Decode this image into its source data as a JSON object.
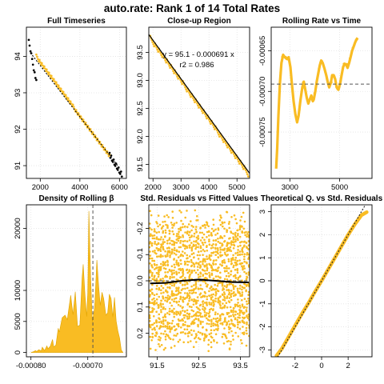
{
  "title": "auto.rate: Rank 1 of 14 Total Rates",
  "colors": {
    "series": "#f9bc23",
    "point_dark": "#000000",
    "fit": "#000000",
    "reference": "#555555",
    "grid": "#e3e3e3",
    "background": "#ffffff"
  },
  "chart_data": [
    {
      "id": "full-timeseries",
      "type": "scatter",
      "title": "Full Timeseries",
      "xlabel": "",
      "ylabel": "",
      "xlim": [
        1300,
        6350
      ],
      "ylim": [
        90.65,
        94.8
      ],
      "x_ticks": [
        2000,
        4000,
        6000
      ],
      "x_tick_labels": [
        "2000",
        "4000",
        "6000"
      ],
      "y_ticks": [
        91,
        92,
        93,
        94
      ],
      "y_tick_labels": [
        "91",
        "92",
        "93",
        "94"
      ],
      "y_tick_rotation": -90,
      "grid": true,
      "series": [
        {
          "style": "points-black",
          "x": [
            1420,
            1800
          ],
          "y": [
            94.4,
            93.3
          ],
          "note_dark": true
        },
        {
          "style": "points-yellow",
          "x": [
            1800,
            5500
          ],
          "y": [
            94.0,
            91.25
          ]
        },
        {
          "style": "points-black",
          "x": [
            5500,
            6120
          ],
          "y": [
            91.3,
            90.75
          ],
          "note_dark": true
        }
      ],
      "fit_line": {
        "x": [
          1500,
          6050
        ],
        "y": [
          94.1,
          90.9
        ],
        "style": "dotted"
      }
    },
    {
      "id": "close-up-region",
      "type": "scatter",
      "title": "Close-up Region",
      "xlim": [
        1850,
        5450
      ],
      "ylim": [
        91.25,
        93.95
      ],
      "x_ticks": [
        2000,
        3000,
        4000,
        5000
      ],
      "x_tick_labels": [
        "2000",
        "3000",
        "4000",
        "5000"
      ],
      "y_ticks": [
        91.5,
        92.0,
        92.5,
        93.0,
        93.5
      ],
      "y_tick_labels": [
        "91.5",
        "92.0",
        "92.5",
        "93.0",
        "93.5"
      ],
      "y_tick_rotation": -90,
      "grid": true,
      "series": [
        {
          "style": "points-yellow",
          "x": [
            1900,
            5400
          ],
          "y": [
            93.75,
            91.33
          ]
        }
      ],
      "fit_line": {
        "x": [
          1850,
          5450
        ],
        "y": [
          93.82,
          91.34
        ],
        "style": "solid"
      },
      "annotations": [
        "y = 95.1 - 0.000691  x",
        "r2 = 0.986"
      ]
    },
    {
      "id": "rolling-rate-vs-time",
      "type": "line",
      "title": "Rolling Rate vs Time",
      "xlim": [
        2250,
        6300
      ],
      "ylim": [
        -0.000807,
        -0.000621
      ],
      "x_ticks": [
        3000,
        5000
      ],
      "x_tick_labels": [
        "3000",
        "5000"
      ],
      "y_ticks": [
        -0.00065,
        -0.0007,
        -0.00075
      ],
      "y_tick_labels": [
        "-0.00065",
        "-0.00070",
        "-0.00075"
      ],
      "y_tick_rotation": -90,
      "grid": true,
      "series": [
        {
          "x": [
            2450,
            2490,
            2540,
            2600,
            2660,
            2730,
            2800,
            2870,
            2950,
            3020,
            3080,
            3150,
            3220,
            3290,
            3350,
            3420,
            3500,
            3560,
            3620,
            3680,
            3740,
            3800,
            3860,
            3920,
            3960,
            4020,
            4080,
            4140,
            4200,
            4260,
            4320,
            4390,
            4460,
            4520,
            4580,
            4640,
            4700,
            4760,
            4820,
            4880,
            4950,
            5020,
            5080,
            5140,
            5200,
            5260,
            5320,
            5380,
            5440,
            5500,
            5560,
            5620,
            5680,
            5720
          ],
          "y": [
            -0.000795,
            -0.00077,
            -0.00073,
            -0.00069,
            -0.000665,
            -0.000655,
            -0.000658,
            -0.00066,
            -0.000658,
            -0.00067,
            -0.00069,
            -0.000712,
            -0.000728,
            -0.000738,
            -0.00073,
            -0.000712,
            -0.000695,
            -0.000688,
            -0.000698,
            -0.000708,
            -0.000715,
            -0.00071,
            -0.000705,
            -0.000712,
            -0.00071,
            -0.0007,
            -0.000688,
            -0.000678,
            -0.000668,
            -0.000662,
            -0.000665,
            -0.000672,
            -0.00068,
            -0.000688,
            -0.000695,
            -0.00069,
            -0.00068,
            -0.00068,
            -0.000685,
            -0.000695,
            -0.000698,
            -0.00069,
            -0.00068,
            -0.00067,
            -0.000666,
            -0.000667,
            -0.000671,
            -0.000665,
            -0.000658,
            -0.00065,
            -0.000645,
            -0.00064,
            -0.000636,
            -0.000634
          ]
        }
      ],
      "reference_line": {
        "y": -0.000691,
        "style": "dashed"
      }
    },
    {
      "id": "density-of-rolling-beta",
      "type": "area",
      "title": "Density of Rolling β",
      "xlim": [
        -0.000808,
        -0.000632
      ],
      "ylim": [
        -700,
        23800
      ],
      "x_ticks": [
        -0.0008,
        -0.0007
      ],
      "x_tick_labels": [
        "-0.00080",
        "-0.00070"
      ],
      "y_ticks": [
        0,
        5000,
        10000,
        20000
      ],
      "y_tick_labels": [
        "0",
        "5000",
        "10000",
        "20000"
      ],
      "y_tick_rotation": -90,
      "grid": true,
      "series": [
        {
          "x": [
            -0.0008,
            -0.000796,
            -0.000792,
            -0.00079,
            -0.000786,
            -0.000782,
            -0.00078,
            -0.000776,
            -0.000772,
            -0.00077,
            -0.000766,
            -0.000762,
            -0.00076,
            -0.000756,
            -0.000752,
            -0.00075,
            -0.000745,
            -0.00074,
            -0.000736,
            -0.00073,
            -0.000726,
            -0.000722,
            -0.000718,
            -0.000714,
            -0.00071,
            -0.000708,
            -0.000705,
            -0.000702,
            -0.0007,
            -0.000698,
            -0.000695,
            -0.000692,
            -0.000688,
            -0.000686,
            -0.000684,
            -0.000681,
            -0.000678,
            -0.000675,
            -0.000672,
            -0.000668,
            -0.000665,
            -0.000662,
            -0.000659,
            -0.000656,
            -0.000653,
            -0.00065,
            -0.000647,
            -0.000644,
            -0.000641,
            -0.000638
          ],
          "y": [
            0,
            100,
            300,
            150,
            450,
            250,
            850,
            300,
            1050,
            600,
            1000,
            2100,
            900,
            1200,
            3900,
            3300,
            5600,
            6000,
            5300,
            9200,
            6100,
            9800,
            4200,
            4400,
            12000,
            14200,
            9400,
            5800,
            9600,
            22800,
            12200,
            4900,
            7200,
            10800,
            14900,
            10900,
            7600,
            9700,
            8700,
            6000,
            6400,
            9400,
            8700,
            5700,
            8900,
            5100,
            3500,
            2300,
            400,
            0
          ]
        }
      ],
      "reference_line": {
        "x": -0.000691,
        "style": "dashed"
      }
    },
    {
      "id": "std-residuals-vs-fitted",
      "type": "scatter",
      "title": "Std. Residuals vs Fitted Values",
      "xlim": [
        91.3,
        93.72
      ],
      "ylim": [
        0.29,
        -0.29
      ],
      "x_ticks": [
        91.5,
        92.5,
        93.5
      ],
      "x_tick_labels": [
        "91.5",
        "92.5",
        "93.5"
      ],
      "y_ticks": [
        -0.2,
        -0.1,
        0.0,
        0.1,
        0.2
      ],
      "y_tick_labels": [
        "-0.2",
        "-0.1",
        "0.0",
        "0.1",
        "0.2"
      ],
      "y_reversed": true,
      "y_tick_rotation": -90,
      "grid": true,
      "series": [
        {
          "style": "points-yellow",
          "x": [
            91.33,
            93.7
          ],
          "y": [
            -0.27,
            0.28
          ]
        }
      ],
      "smooth_line": {
        "x": [
          91.33,
          91.7,
          92.1,
          92.5,
          92.9,
          93.3,
          93.7
        ],
        "y": [
          0.01,
          0.008,
          0.0,
          -0.005,
          0.0,
          0.005,
          0.006
        ]
      },
      "reference_line": {
        "y": 0,
        "style": "dashed"
      }
    },
    {
      "id": "theoretical-q-vs-std-residuals",
      "type": "scatter",
      "title": "Theoretical Q. vs Std. Residuals",
      "xlim": [
        -3.8,
        3.8
      ],
      "ylim": [
        -3.3,
        3.3
      ],
      "x_ticks": [
        -2,
        0,
        2
      ],
      "x_tick_labels": [
        "-2",
        "0",
        "2"
      ],
      "y_ticks": [
        -3,
        -2,
        -1,
        0,
        1,
        2,
        3
      ],
      "y_tick_labels": [
        "-3",
        "-2",
        "-1",
        "0",
        "1",
        "2",
        "3"
      ],
      "y_tick_rotation": -90,
      "grid": true,
      "series": [
        {
          "style": "qq-yellow",
          "x": [
            -3.4,
            -3.0,
            -2.5,
            -2.0,
            -1.5,
            -1.0,
            -0.5,
            0.0,
            0.5,
            1.0,
            1.5,
            2.0,
            2.5,
            3.0,
            3.4
          ],
          "y": [
            -3.25,
            -2.95,
            -2.45,
            -1.95,
            -1.45,
            -0.98,
            -0.48,
            0.0,
            0.5,
            1.0,
            1.5,
            2.0,
            2.45,
            2.85,
            2.98
          ]
        }
      ],
      "reference_line": {
        "slope": 1,
        "intercept": 0,
        "style": "dotted"
      }
    }
  ]
}
